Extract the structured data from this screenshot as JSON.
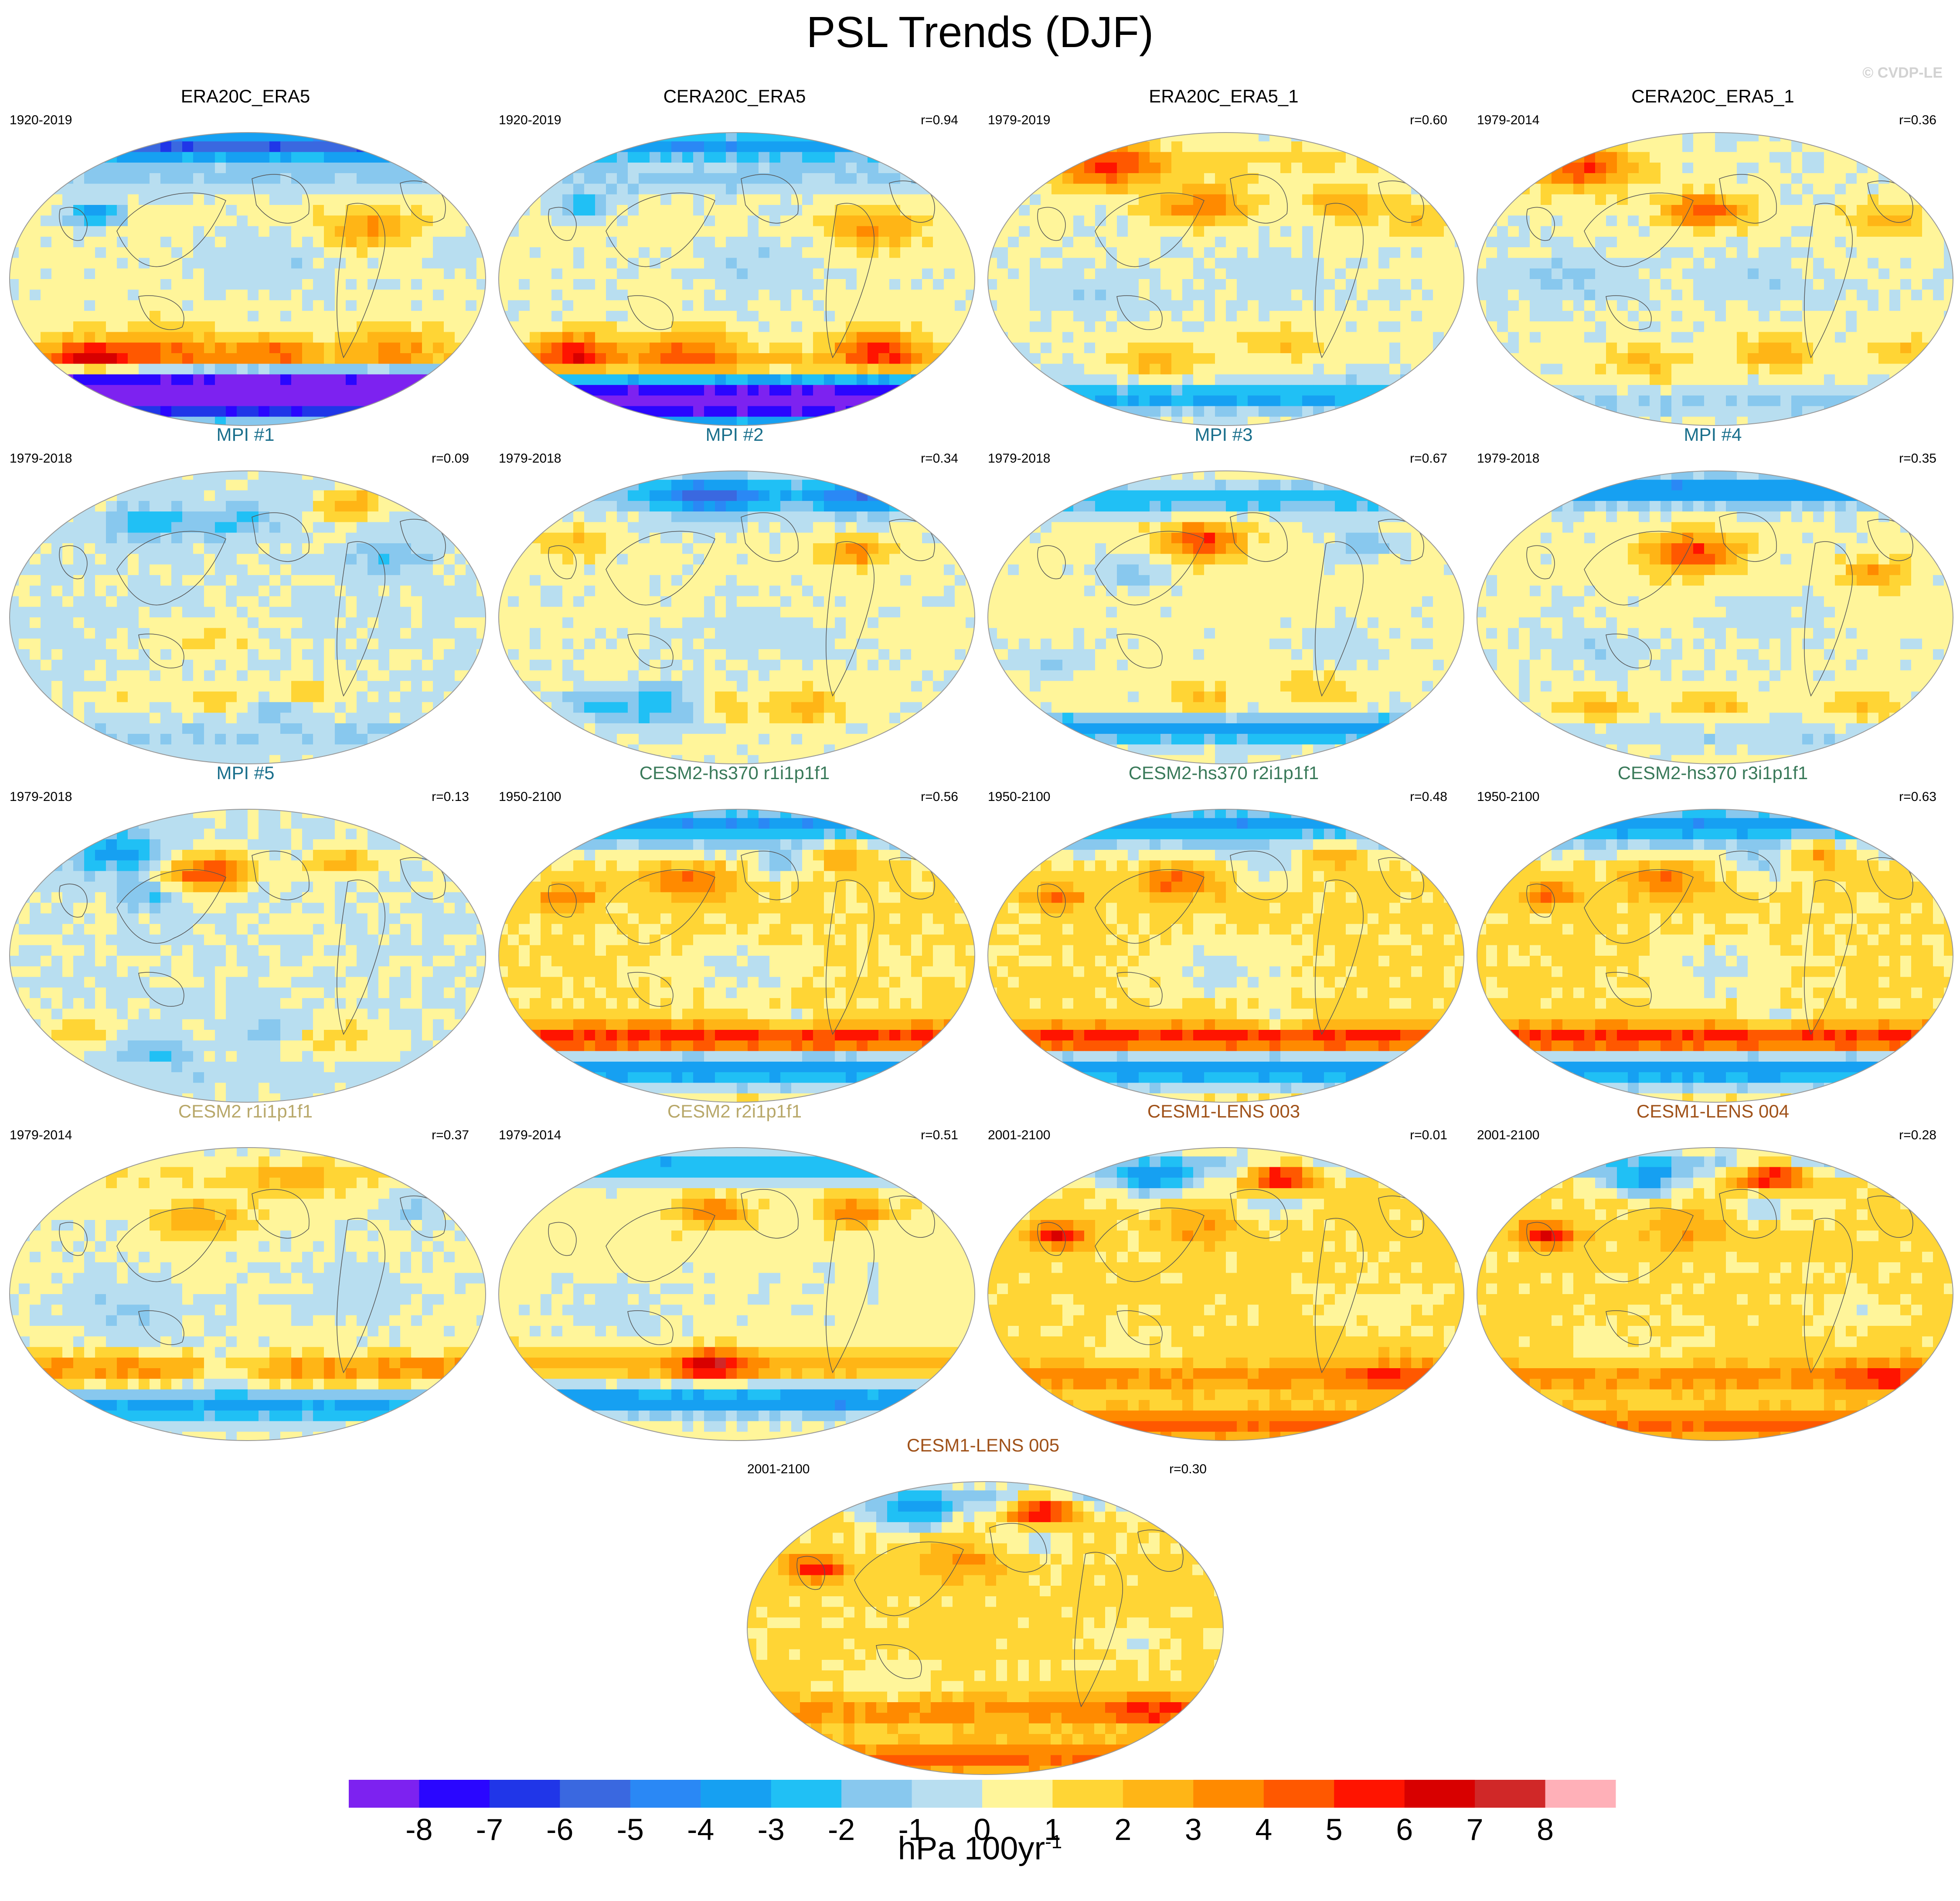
{
  "title": "PSL Trends (DJF)",
  "credit": "© CVDP-LE",
  "colors": {
    "model_colors": {
      "obs": "#000000",
      "MPI": "#1a6f8c",
      "CESM2-hs370": "#3a7a5a",
      "CESM2": "#b8a86a",
      "CESM1-LENS": "#a0521a"
    }
  },
  "panels": [
    {
      "title": "ERA20C_ERA5",
      "years": "1920-2019",
      "r": "",
      "color_key": "obs",
      "pattern": "era20c"
    },
    {
      "title": "CERA20C_ERA5",
      "years": "1920-2019",
      "r": "r=0.94",
      "color_key": "obs",
      "pattern": "cera20c"
    },
    {
      "title": "ERA20C_ERA5_1",
      "years": "1979-2019",
      "r": "r=0.60",
      "color_key": "obs",
      "pattern": "era5_1"
    },
    {
      "title": "CERA20C_ERA5_1",
      "years": "1979-2014",
      "r": "r=0.36",
      "color_key": "obs",
      "pattern": "cera5_1"
    },
    {
      "title": "MPI #1",
      "years": "1979-2018",
      "r": "r=0.09",
      "color_key": "MPI",
      "pattern": "weak"
    },
    {
      "title": "MPI #2",
      "years": "1979-2018",
      "r": "r=0.34",
      "color_key": "MPI",
      "pattern": "mpi2"
    },
    {
      "title": "MPI #3",
      "years": "1979-2018",
      "r": "r=0.67",
      "color_key": "MPI",
      "pattern": "mpi3"
    },
    {
      "title": "MPI #4",
      "years": "1979-2018",
      "r": "r=0.35",
      "color_key": "MPI",
      "pattern": "mpi4"
    },
    {
      "title": "MPI #5",
      "years": "1979-2018",
      "r": "r=0.13",
      "color_key": "MPI",
      "pattern": "mpi5"
    },
    {
      "title": "CESM2-hs370 r1i1p1f1",
      "years": "1950-2100",
      "r": "r=0.56",
      "color_key": "CESM2-hs370",
      "pattern": "hs370"
    },
    {
      "title": "CESM2-hs370 r2i1p1f1",
      "years": "1950-2100",
      "r": "r=0.48",
      "color_key": "CESM2-hs370",
      "pattern": "hs370"
    },
    {
      "title": "CESM2-hs370 r3i1p1f1",
      "years": "1950-2100",
      "r": "r=0.63",
      "color_key": "CESM2-hs370",
      "pattern": "hs370"
    },
    {
      "title": "CESM2 r1i1p1f1",
      "years": "1979-2014",
      "r": "r=0.37",
      "color_key": "CESM2",
      "pattern": "cesm2a"
    },
    {
      "title": "CESM2 r2i1p1f1",
      "years": "1979-2014",
      "r": "r=0.51",
      "color_key": "CESM2",
      "pattern": "cesm2b"
    },
    {
      "title": "CESM1-LENS 003",
      "years": "2001-2100",
      "r": "r=0.01",
      "color_key": "CESM1-LENS",
      "pattern": "lens"
    },
    {
      "title": "CESM1-LENS 004",
      "years": "2001-2100",
      "r": "r=0.28",
      "color_key": "CESM1-LENS",
      "pattern": "lens"
    },
    {
      "title": "CESM1-LENS 005",
      "years": "2001-2100",
      "r": "r=0.30",
      "color_key": "CESM1-LENS",
      "pattern": "lens"
    }
  ],
  "colorbar": {
    "unit_text": "hPa 100yr",
    "unit_exponent": "-1",
    "labels": [
      "-8",
      "-7",
      "-6",
      "-5",
      "-4",
      "-3",
      "-2",
      "-1",
      "0",
      "1",
      "2",
      "3",
      "4",
      "5",
      "6",
      "7",
      "8"
    ],
    "colors": [
      "#7d22f0",
      "#2a06ff",
      "#2036e8",
      "#3a68e0",
      "#2a88f5",
      "#16a0f2",
      "#20c0f5",
      "#88c8ee",
      "#b8def0",
      "#fff59a",
      "#ffd535",
      "#ffb516",
      "#ff8a00",
      "#ff5800",
      "#ff1400",
      "#d80000",
      "#d02828",
      "#ffb0b8"
    ]
  },
  "chart_data": {
    "type": "heatmap",
    "title": "PSL Trends (DJF)",
    "colorbar_label": "hPa 100yr^-1",
    "levels": [
      -8,
      -7,
      -6,
      -5,
      -4,
      -3,
      -2,
      -1,
      0,
      1,
      2,
      3,
      4,
      5,
      6,
      7,
      8
    ],
    "projection": "global map (Robinson-like)",
    "panels": [
      {
        "name": "ERA20C_ERA5",
        "period": "1920-2019",
        "pattern_correlation": null
      },
      {
        "name": "CERA20C_ERA5",
        "period": "1920-2019",
        "pattern_correlation": 0.94
      },
      {
        "name": "ERA20C_ERA5_1",
        "period": "1979-2019",
        "pattern_correlation": 0.6
      },
      {
        "name": "CERA20C_ERA5_1",
        "period": "1979-2014",
        "pattern_correlation": 0.36
      },
      {
        "name": "MPI #1",
        "period": "1979-2018",
        "pattern_correlation": 0.09
      },
      {
        "name": "MPI #2",
        "period": "1979-2018",
        "pattern_correlation": 0.34
      },
      {
        "name": "MPI #3",
        "period": "1979-2018",
        "pattern_correlation": 0.67
      },
      {
        "name": "MPI #4",
        "period": "1979-2018",
        "pattern_correlation": 0.35
      },
      {
        "name": "MPI #5",
        "period": "1979-2018",
        "pattern_correlation": 0.13
      },
      {
        "name": "CESM2-hs370 r1i1p1f1",
        "period": "1950-2100",
        "pattern_correlation": 0.56
      },
      {
        "name": "CESM2-hs370 r2i1p1f1",
        "period": "1950-2100",
        "pattern_correlation": 0.48
      },
      {
        "name": "CESM2-hs370 r3i1p1f1",
        "period": "1950-2100",
        "pattern_correlation": 0.63
      },
      {
        "name": "CESM2 r1i1p1f1",
        "period": "1979-2014",
        "pattern_correlation": 0.37
      },
      {
        "name": "CESM2 r2i1p1f1",
        "period": "1979-2014",
        "pattern_correlation": 0.51
      },
      {
        "name": "CESM1-LENS 003",
        "period": "2001-2100",
        "pattern_correlation": 0.01
      },
      {
        "name": "CESM1-LENS 004",
        "period": "2001-2100",
        "pattern_correlation": 0.28
      },
      {
        "name": "CESM1-LENS 005",
        "period": "2001-2100",
        "pattern_correlation": 0.3
      }
    ]
  }
}
